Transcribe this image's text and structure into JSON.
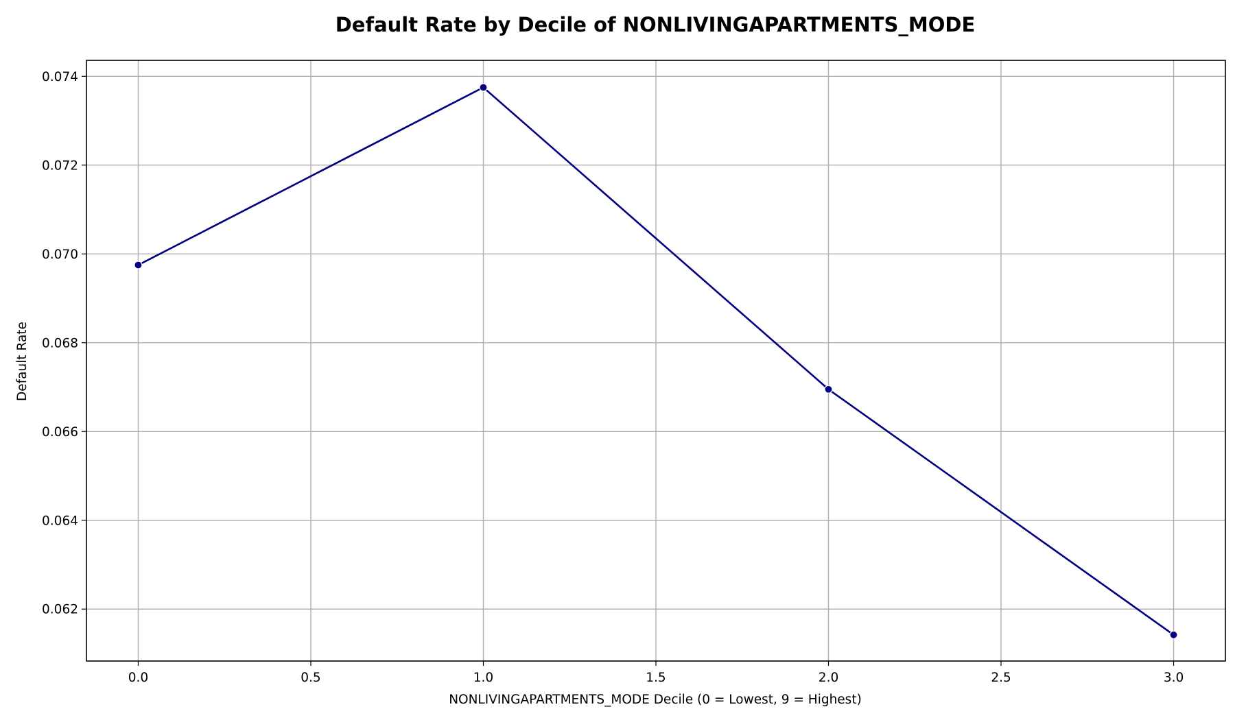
{
  "chart_data": {
    "type": "line",
    "title": "Default Rate by Decile of NONLIVINGAPARTMENTS_MODE",
    "xlabel": "NONLIVINGAPARTMENTS_MODE Decile (0 = Lowest, 9 = Highest)",
    "ylabel": "Default Rate",
    "x": [
      0,
      1,
      2,
      3
    ],
    "series": [
      {
        "values": [
          0.06975,
          0.07375,
          0.06695,
          0.06142
        ]
      }
    ],
    "xlim": [
      -0.15,
      3.15
    ],
    "ylim": [
      0.06083,
      0.07436
    ],
    "xticks": [
      0.0,
      0.5,
      1.0,
      1.5,
      2.0,
      2.5,
      3.0
    ],
    "xtick_labels": [
      "0.0",
      "0.5",
      "1.0",
      "1.5",
      "2.0",
      "2.5",
      "3.0"
    ],
    "yticks": [
      0.062,
      0.064,
      0.066,
      0.068,
      0.07,
      0.072,
      0.074
    ],
    "ytick_labels": [
      "0.062",
      "0.064",
      "0.066",
      "0.068",
      "0.070",
      "0.072",
      "0.074"
    ],
    "grid": true,
    "line_color": "#000080",
    "marker_color": "#000080",
    "marker": "circle"
  }
}
